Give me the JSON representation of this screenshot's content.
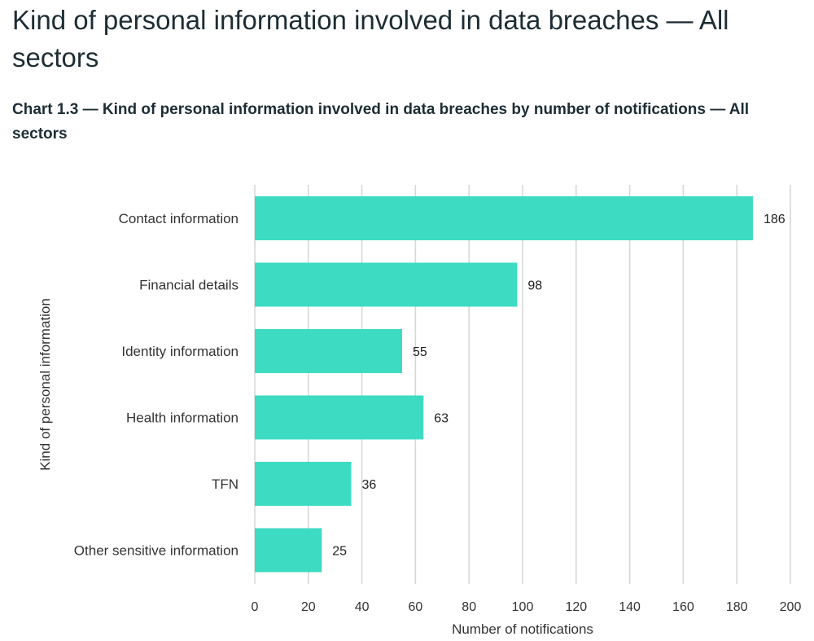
{
  "page": {
    "title": "Kind of personal information involved in data breaches — All sectors",
    "chart_heading": "Chart 1.3 — Kind of personal information involved in data breaches by number of notifications — All sectors"
  },
  "colors": {
    "bar": "#3ddbc2",
    "grid": "#d6d6d6",
    "axis_text": "#333333",
    "heading_text": "#1d2d35"
  },
  "chart_data": {
    "type": "bar",
    "orientation": "horizontal",
    "title": "Chart 1.3 — Kind of personal information involved in data breaches by number of notifications — All sectors",
    "categories": [
      "Contact information",
      "Financial details",
      "Identity information",
      "Health information",
      "TFN",
      "Other sensitive information"
    ],
    "values": [
      186,
      98,
      55,
      63,
      36,
      25
    ],
    "data_labels": [
      "186",
      "98",
      "55",
      "63",
      "36",
      "25"
    ],
    "xlabel": "Number of notifications",
    "ylabel": "Kind of personal information",
    "xlim": [
      0,
      200
    ],
    "x_ticks": [
      0,
      20,
      40,
      60,
      80,
      100,
      120,
      140,
      160,
      180,
      200
    ],
    "grid": true,
    "legend": "none"
  }
}
